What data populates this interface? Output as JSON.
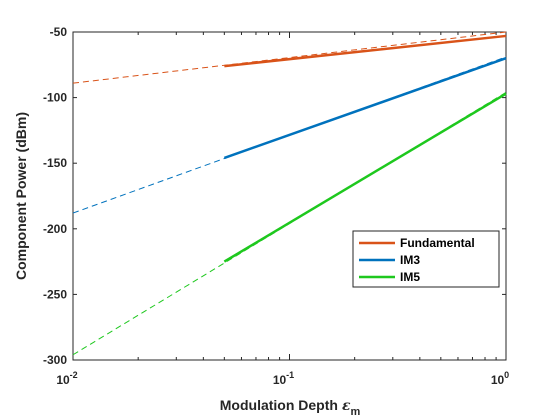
{
  "chart_data": {
    "type": "line",
    "title": "",
    "xlabel": "Modulation Depth",
    "xlabel_symbol": "ε",
    "xlabel_subscript": "m",
    "ylabel": "Component Power (dBm)",
    "xscale": "log",
    "xlim": [
      0.01,
      1
    ],
    "ylim": [
      -300,
      -50
    ],
    "xticks": [
      0.01,
      0.1,
      1
    ],
    "xtick_labels": [
      {
        "base": "10",
        "exp": "-2"
      },
      {
        "base": "10",
        "exp": "-1"
      },
      {
        "base": "10",
        "exp": "0"
      }
    ],
    "yticks": [
      -300,
      -250,
      -200,
      -150,
      -100,
      -50
    ],
    "ytick_labels": [
      "-300",
      "-250",
      "-200",
      "-150",
      "-100",
      "-50"
    ],
    "grid": false,
    "legend_position": "lower-right",
    "series": [
      {
        "name": "Fundamental",
        "color": "#d95319",
        "solid": {
          "x": [
            0.05,
            1
          ],
          "y": [
            -76,
            -53
          ]
        },
        "dashed": {
          "x": [
            0.01,
            1
          ],
          "y": [
            -89,
            -50
          ]
        }
      },
      {
        "name": "IM3",
        "color": "#0072bd",
        "solid": {
          "x": [
            0.05,
            1
          ],
          "y": [
            -146,
            -70
          ]
        },
        "dashed": {
          "x": [
            0.01,
            1
          ],
          "y": [
            -188,
            -69
          ]
        }
      },
      {
        "name": "IM5",
        "color": "#1ec81e",
        "solid": {
          "x": [
            0.05,
            1
          ],
          "y": [
            -225,
            -97
          ]
        },
        "dashed": {
          "x": [
            0.01,
            1
          ],
          "y": [
            -296,
            -96
          ]
        }
      }
    ]
  }
}
